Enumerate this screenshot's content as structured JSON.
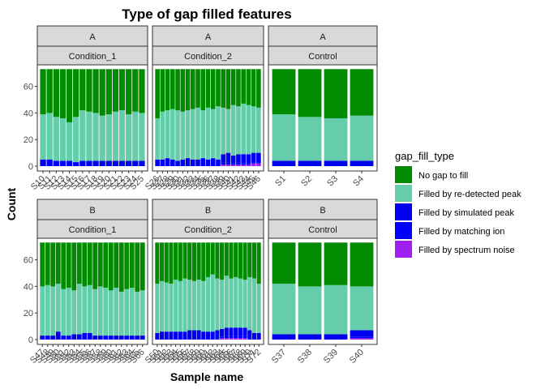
{
  "chart_data": {
    "type": "bar",
    "stacked": true,
    "title": "Type of gap filled features",
    "xlabel": "Sample name",
    "ylabel": "Count",
    "ylim": [
      0,
      75
    ],
    "yticks": [
      0,
      20,
      40,
      60
    ],
    "legend": {
      "title": "gap_fill_type",
      "placement": "right",
      "items": [
        {
          "label": "No gap to fill",
          "color": "#008b00"
        },
        {
          "label": "Filled by re-detected peak",
          "color": "#66cdaa"
        },
        {
          "label": "Filled by simulated peak",
          "color": "#0000ee"
        },
        {
          "label": "Filled by matching ion",
          "color": "#0000ff"
        },
        {
          "label": "Filled by spectrum noise",
          "color": "#a020f0"
        }
      ]
    },
    "panels": [
      {
        "row": "A",
        "col": "Condition_1",
        "samples": [
          "S10",
          "S11",
          "S12",
          "S13",
          "S14",
          "S15",
          "S16",
          "S17",
          "S18",
          "S19",
          "S20",
          "S21",
          "S22",
          "S23",
          "S24",
          "S25"
        ],
        "total": 73,
        "redetected_top": [
          39,
          40,
          37,
          36,
          33,
          37,
          42,
          41,
          40,
          38,
          39,
          41,
          42,
          39,
          41,
          40
        ],
        "simulated": [
          5,
          5,
          4,
          4,
          4,
          3,
          4,
          4,
          4,
          4,
          4,
          4,
          4,
          4,
          4,
          4
        ],
        "matching": [
          0,
          0,
          0,
          0,
          0,
          0,
          0,
          0,
          0,
          0,
          0,
          0,
          0,
          0,
          0,
          0
        ],
        "noise": [
          0,
          0,
          0,
          0,
          0,
          0,
          0,
          0,
          0,
          0,
          0,
          0,
          0,
          0,
          0,
          0
        ]
      },
      {
        "row": "A",
        "col": "Condition_2",
        "samples": [
          "S26",
          "S27",
          "S28",
          "S29",
          "S30",
          "S31",
          "S32",
          "S33",
          "S34",
          "S35",
          "S36",
          "S37",
          "S38",
          "S39",
          "S40",
          "S41",
          "S42",
          "S43",
          "S44",
          "S45",
          "S46"
        ],
        "total": 73,
        "redetected_top": [
          36,
          41,
          42,
          43,
          42,
          41,
          42,
          43,
          44,
          42,
          44,
          43,
          45,
          44,
          43,
          46,
          45,
          47,
          46,
          45,
          44
        ],
        "simulated": [
          5,
          5,
          6,
          5,
          4,
          5,
          6,
          5,
          5,
          6,
          5,
          6,
          5,
          6,
          7,
          6,
          6,
          7,
          7,
          7,
          7
        ],
        "matching": [
          0,
          0,
          0,
          0,
          0,
          0,
          0,
          0,
          0,
          0,
          0,
          0,
          0,
          2,
          2,
          1,
          2,
          1,
          1,
          1,
          1
        ],
        "noise": [
          0,
          0,
          0,
          0,
          0,
          0,
          0,
          0,
          0,
          0,
          0,
          0,
          0,
          1,
          1,
          1,
          1,
          1,
          1,
          2,
          2
        ]
      },
      {
        "row": "A",
        "col": "Control",
        "samples": [
          "S1",
          "S2",
          "S3",
          "S4"
        ],
        "total": 73,
        "redetected_top": [
          39,
          37,
          36,
          38
        ],
        "simulated": [
          4,
          4,
          4,
          4
        ],
        "matching": [
          0,
          0,
          0,
          0
        ],
        "noise": [
          0,
          0,
          0,
          0
        ]
      },
      {
        "row": "B",
        "col": "Condition_1",
        "samples": [
          "S47",
          "S48",
          "S49",
          "S50",
          "S51",
          "S52",
          "S53",
          "S54",
          "S55",
          "S56",
          "S57",
          "S58",
          "S59",
          "S60",
          "S61",
          "S62",
          "S63",
          "S64",
          "S65",
          "S66"
        ],
        "total": 73,
        "redetected_top": [
          40,
          41,
          40,
          42,
          38,
          39,
          37,
          42,
          40,
          41,
          38,
          40,
          39,
          37,
          39,
          36,
          38,
          39,
          36,
          37
        ],
        "simulated": [
          3,
          3,
          3,
          6,
          3,
          3,
          4,
          4,
          5,
          5,
          3,
          3,
          3,
          3,
          3,
          3,
          3,
          3,
          3,
          3
        ],
        "matching": [
          0,
          0,
          0,
          0,
          0,
          0,
          0,
          0,
          0,
          0,
          0,
          0,
          0,
          0,
          0,
          0,
          0,
          0,
          0,
          0
        ],
        "noise": [
          0,
          0,
          0,
          0,
          0,
          0,
          0,
          0,
          0,
          0,
          0,
          0,
          0,
          0,
          0,
          0,
          0,
          0,
          0,
          0
        ]
      },
      {
        "row": "B",
        "col": "Condition_2",
        "samples": [
          "S50",
          "S51",
          "S52",
          "S53",
          "S54",
          "S55",
          "S56",
          "S57",
          "S58",
          "S59",
          "S60",
          "S61",
          "S62",
          "S63",
          "S64",
          "S65",
          "S66",
          "S67",
          "S68",
          "S69",
          "S70",
          "S71",
          "S72"
        ],
        "total": 73,
        "redetected_top": [
          42,
          44,
          43,
          42,
          45,
          44,
          46,
          45,
          44,
          45,
          44,
          47,
          49,
          46,
          45,
          48,
          46,
          47,
          46,
          45,
          47,
          46,
          42
        ],
        "simulated": [
          5,
          6,
          6,
          6,
          6,
          6,
          6,
          7,
          7,
          7,
          6,
          6,
          6,
          6,
          6,
          6,
          6,
          6,
          6,
          6,
          6,
          5,
          5
        ],
        "matching": [
          0,
          0,
          0,
          0,
          0,
          0,
          0,
          0,
          0,
          0,
          0,
          0,
          0,
          1,
          1,
          2,
          2,
          2,
          2,
          2,
          1,
          0,
          0
        ],
        "noise": [
          0,
          0,
          0,
          0,
          0,
          0,
          0,
          0,
          0,
          0,
          0,
          0,
          0,
          0,
          1,
          1,
          1,
          1,
          1,
          1,
          0,
          0,
          0
        ]
      },
      {
        "row": "B",
        "col": "Control",
        "samples": [
          "S37",
          "S38",
          "S39",
          "S40"
        ],
        "total": 73,
        "redetected_top": [
          42,
          40,
          41,
          40
        ],
        "simulated": [
          4,
          4,
          4,
          5
        ],
        "matching": [
          0,
          0,
          0,
          1
        ],
        "noise": [
          0,
          0,
          0,
          1
        ]
      }
    ]
  }
}
